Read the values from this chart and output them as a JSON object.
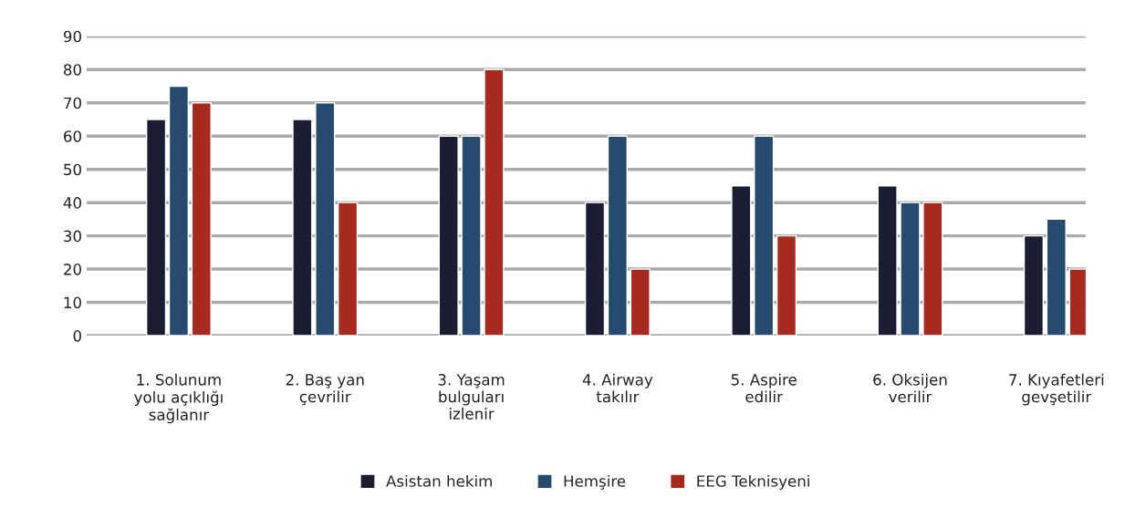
{
  "chart_data": {
    "type": "bar",
    "categories": [
      "1. Solunum\nyolu açıklığı\nsağlanır",
      "2. Baş yan\nçevrilir",
      "3. Yaşam\nbulguları\nizlenir",
      "4. Airway\ntakılır",
      "5. Aspire\nedilir",
      "6. Oksijen\nverilir",
      "7. Kıyafetleri\ngevşetilir"
    ],
    "series": [
      {
        "name": "Asistan hekim",
        "color": "#1b1d33",
        "values": [
          65,
          65,
          60,
          40,
          45,
          45,
          30
        ]
      },
      {
        "name": "Hemşire",
        "color": "#264b6e",
        "values": [
          75,
          70,
          60,
          60,
          60,
          40,
          35
        ]
      },
      {
        "name": "EEG Teknisyeni",
        "color": "#a72a20",
        "values": [
          70,
          40,
          80,
          20,
          30,
          40,
          20
        ]
      }
    ],
    "ylim": [
      0,
      90
    ],
    "yticks": [
      0,
      10,
      20,
      30,
      40,
      50,
      60,
      70,
      80,
      90
    ],
    "grid": "y",
    "legend": "bottom"
  }
}
